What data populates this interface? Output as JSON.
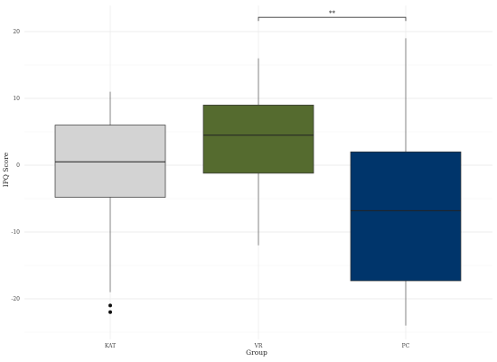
{
  "chart_data": {
    "type": "boxplot",
    "xlabel": "Group",
    "ylabel": "IPQ Score",
    "ylim": [
      -25,
      24
    ],
    "yticks": [
      -20,
      -10,
      0,
      10,
      20
    ],
    "grid": true,
    "categories": [
      "KAT",
      "VR",
      "PC"
    ],
    "boxes": [
      {
        "category": "KAT",
        "min": -19,
        "q1": -4.8,
        "median": 0.5,
        "q3": 6,
        "max": 11,
        "outliers": [
          -21,
          -22
        ],
        "color": "#d3d3d3"
      },
      {
        "category": "VR",
        "min": -12,
        "q1": -1.2,
        "median": 4.5,
        "q3": 9,
        "max": 16,
        "outliers": [],
        "color": "#556b2f"
      },
      {
        "category": "PC",
        "min": -24,
        "q1": -17.3,
        "median": -6.8,
        "q3": 2,
        "max": 19,
        "outliers": [],
        "color": "#00356b"
      }
    ],
    "annotations": [
      {
        "from": "VR",
        "to": "PC",
        "label": "**",
        "y": 22
      }
    ]
  }
}
